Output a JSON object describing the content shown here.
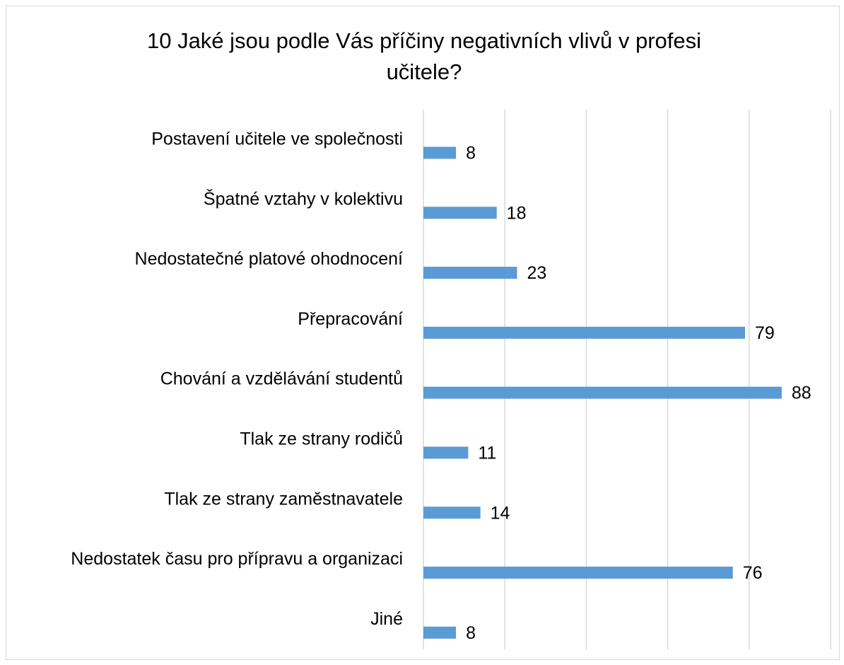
{
  "chart_data": {
    "type": "bar",
    "orientation": "horizontal",
    "title": "10 Jaké jsou podle Vás příčiny negativních vlivů v profesi učitele?",
    "categories": [
      "Postavení učitele ve společnosti",
      "Špatné vztahy v kolektivu",
      "Nedostatečné platové ohodnocení",
      "Přepracování",
      "Chování a vzdělávání studentů",
      "Tlak ze strany rodičů",
      "Tlak ze strany zaměstnavatele",
      "Nedostatek času pro přípravu a organizaci",
      "Jiné"
    ],
    "values": [
      8,
      18,
      23,
      79,
      88,
      11,
      14,
      76,
      8
    ],
    "color": "#5b9bd5",
    "xlim": [
      0,
      100
    ],
    "xticks": [
      0,
      20,
      40,
      60,
      80,
      100
    ],
    "grid": true
  }
}
